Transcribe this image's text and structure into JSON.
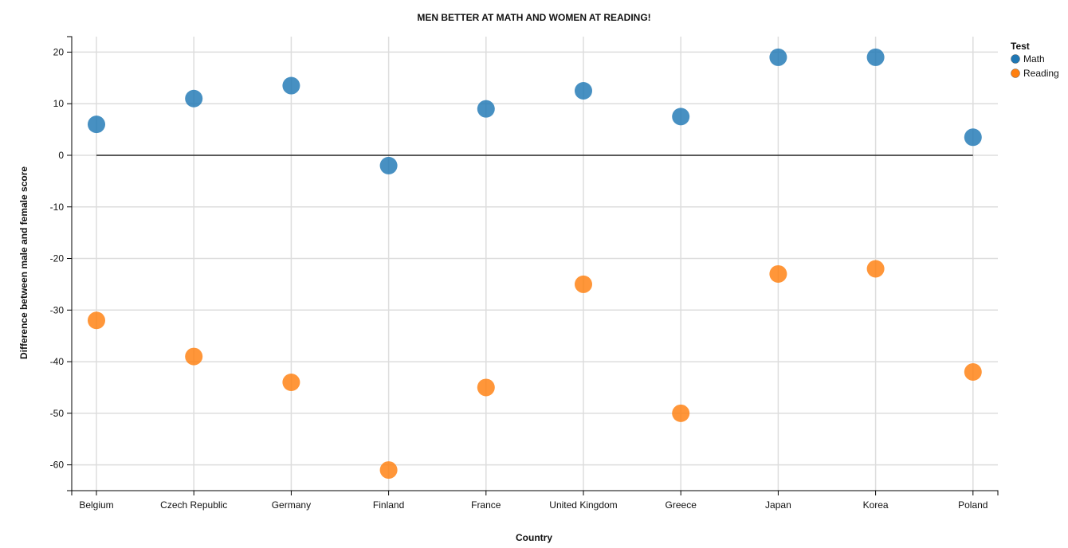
{
  "chart_data": {
    "type": "scatter",
    "title": "MEN BETTER AT MATH AND WOMEN AT READING!",
    "xlabel": "Country",
    "ylabel": "Difference between male and female score",
    "categories": [
      "Belgium",
      "Czech Republic",
      "Germany",
      "Finland",
      "France",
      "United Kingdom",
      "Greece",
      "Japan",
      "Korea",
      "Poland"
    ],
    "ylim": [
      -65,
      23
    ],
    "yticks": [
      20,
      10,
      0,
      -10,
      -20,
      -30,
      -40,
      -50,
      -60
    ],
    "grid": true,
    "reference_line_y": 0,
    "legend": {
      "title": "Test",
      "placement": "top-right"
    },
    "series": [
      {
        "name": "Math",
        "color": "#1f77b4",
        "values": [
          6,
          11,
          13.5,
          -2,
          9,
          12.5,
          7.5,
          19,
          19,
          3.5
        ]
      },
      {
        "name": "Reading",
        "color": "#ff7f0e",
        "values": [
          -32,
          -39,
          -44,
          -61,
          -45,
          -25,
          -50,
          -23,
          -22,
          -42
        ]
      }
    ]
  }
}
